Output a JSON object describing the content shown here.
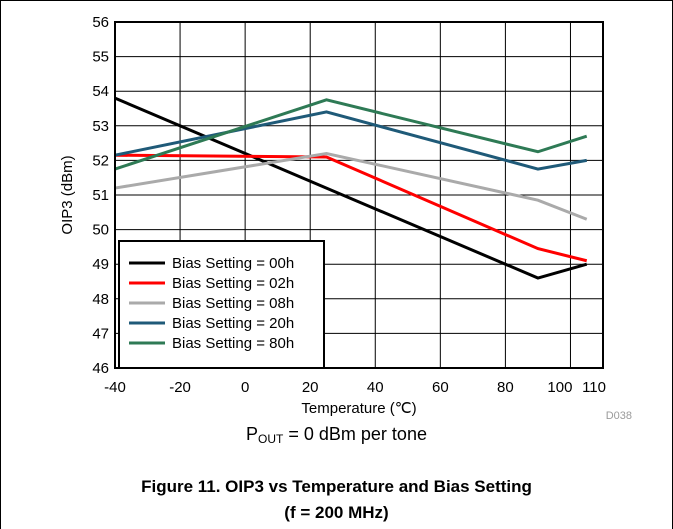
{
  "chart_data": {
    "type": "line",
    "xlabel": "Temperature (℃)",
    "ylabel": "OIP3 (dBm)",
    "xlim": [
      -40,
      110
    ],
    "ylim": [
      46,
      56
    ],
    "x_ticks": [
      "-40",
      "-20",
      "0",
      "20",
      "40",
      "60",
      "80",
      "100",
      "110"
    ],
    "y_ticks": [
      "46",
      "47",
      "48",
      "49",
      "50",
      "51",
      "52",
      "53",
      "54",
      "55",
      "56"
    ],
    "grid": true,
    "legend_position": "bottom-left",
    "series": [
      {
        "name": "Bias Setting = 00h",
        "color": "#000000",
        "x": [
          -40,
          25,
          90,
          105
        ],
        "y": [
          53.8,
          51.2,
          48.6,
          49.0
        ]
      },
      {
        "name": "Bias Setting = 02h",
        "color": "#ff0000",
        "x": [
          -40,
          25,
          90,
          105
        ],
        "y": [
          52.15,
          52.1,
          49.45,
          49.1
        ]
      },
      {
        "name": "Bias Setting = 08h",
        "color": "#aaaaaa",
        "x": [
          -40,
          25,
          90,
          105
        ],
        "y": [
          51.2,
          52.2,
          50.85,
          50.3
        ]
      },
      {
        "name": "Bias Setting = 20h",
        "color": "#1f5a78",
        "x": [
          -40,
          25,
          90,
          105
        ],
        "y": [
          52.15,
          53.4,
          51.75,
          52.0
        ]
      },
      {
        "name": "Bias Setting = 80h",
        "color": "#2e7a55",
        "x": [
          -40,
          25,
          90,
          105
        ],
        "y": [
          51.75,
          53.75,
          52.25,
          52.7
        ]
      }
    ]
  },
  "figure_code": "D038",
  "condition": {
    "prefix": "P",
    "sub": "OUT",
    "rest": " = 0 dBm per tone"
  },
  "caption": {
    "line1": "Figure 11. OIP3 vs Temperature and Bias Setting",
    "line2": "(f = 200 MHz)"
  }
}
